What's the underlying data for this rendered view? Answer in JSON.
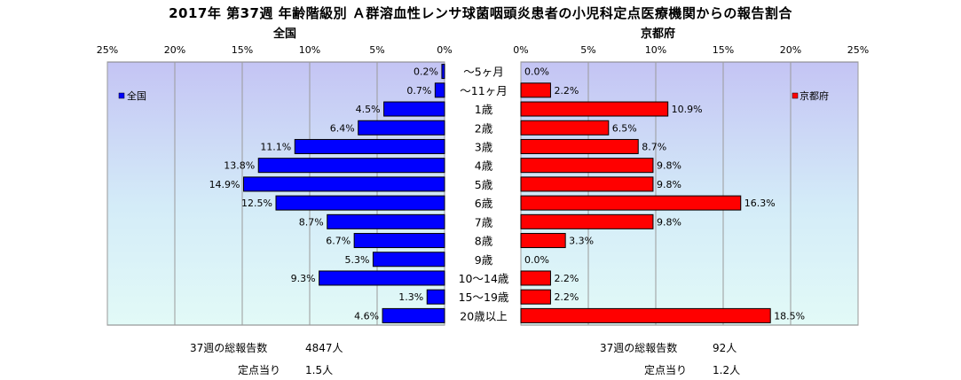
{
  "title": "2017年 第37週 年齢階級別 Ａ群溶血性レンサ球菌咽頭炎患者の小児科定点医療機関からの報告割合",
  "panels": {
    "left": {
      "title": "全国",
      "legend": "全国",
      "color": "#0000ff"
    },
    "right": {
      "title": "京都府",
      "legend": "京都府",
      "color": "#ff0000"
    }
  },
  "chart_data": {
    "type": "bar",
    "orientation": "horizontal-butterfly",
    "categories": [
      "～5ヶ月",
      "～11ヶ月",
      "1歳",
      "2歳",
      "3歳",
      "4歳",
      "5歳",
      "6歳",
      "7歳",
      "8歳",
      "9歳",
      "10～14歳",
      "15～19歳",
      "20歳以上"
    ],
    "series": [
      {
        "name": "全国",
        "values": [
          0.2,
          0.7,
          4.5,
          6.4,
          11.1,
          13.8,
          14.9,
          12.5,
          8.7,
          6.7,
          5.3,
          9.3,
          1.3,
          4.6
        ],
        "color": "#0000ff"
      },
      {
        "name": "京都府",
        "values": [
          0.0,
          2.2,
          10.9,
          6.5,
          8.7,
          9.8,
          9.8,
          16.3,
          9.8,
          3.3,
          0.0,
          2.2,
          2.2,
          18.5
        ],
        "color": "#ff0000"
      }
    ],
    "data_labels": {
      "left": [
        "0.2%",
        "0.7%",
        "4.5%",
        "6.4%",
        "11.1%",
        "13.8%",
        "14.9%",
        "12.5%",
        "8.7%",
        "6.7%",
        "5.3%",
        "9.3%",
        "1.3%",
        "4.6%"
      ],
      "right": [
        "0.0%",
        "2.2%",
        "10.9%",
        "6.5%",
        "8.7%",
        "9.8%",
        "9.8%",
        "16.3%",
        "9.8%",
        "3.3%",
        "0.0%",
        "2.2%",
        "2.2%",
        "18.5%"
      ]
    },
    "xlim": [
      0,
      25
    ],
    "xticks": [
      "0%",
      "5%",
      "10%",
      "15%",
      "20%",
      "25%"
    ],
    "xticks_left": [
      "25%",
      "20%",
      "15%",
      "10%",
      "5%",
      "0%"
    ],
    "grid": true,
    "legend_position": "left: top-left; right: top-right"
  },
  "footer": {
    "left": {
      "total_label": "37週の総報告数",
      "total_value": "4847人",
      "per_label": "定点当り",
      "per_value": "1.5人"
    },
    "right": {
      "total_label": "37週の総報告数",
      "total_value": "92人",
      "per_label": "定点当り",
      "per_value": "1.2人"
    }
  }
}
